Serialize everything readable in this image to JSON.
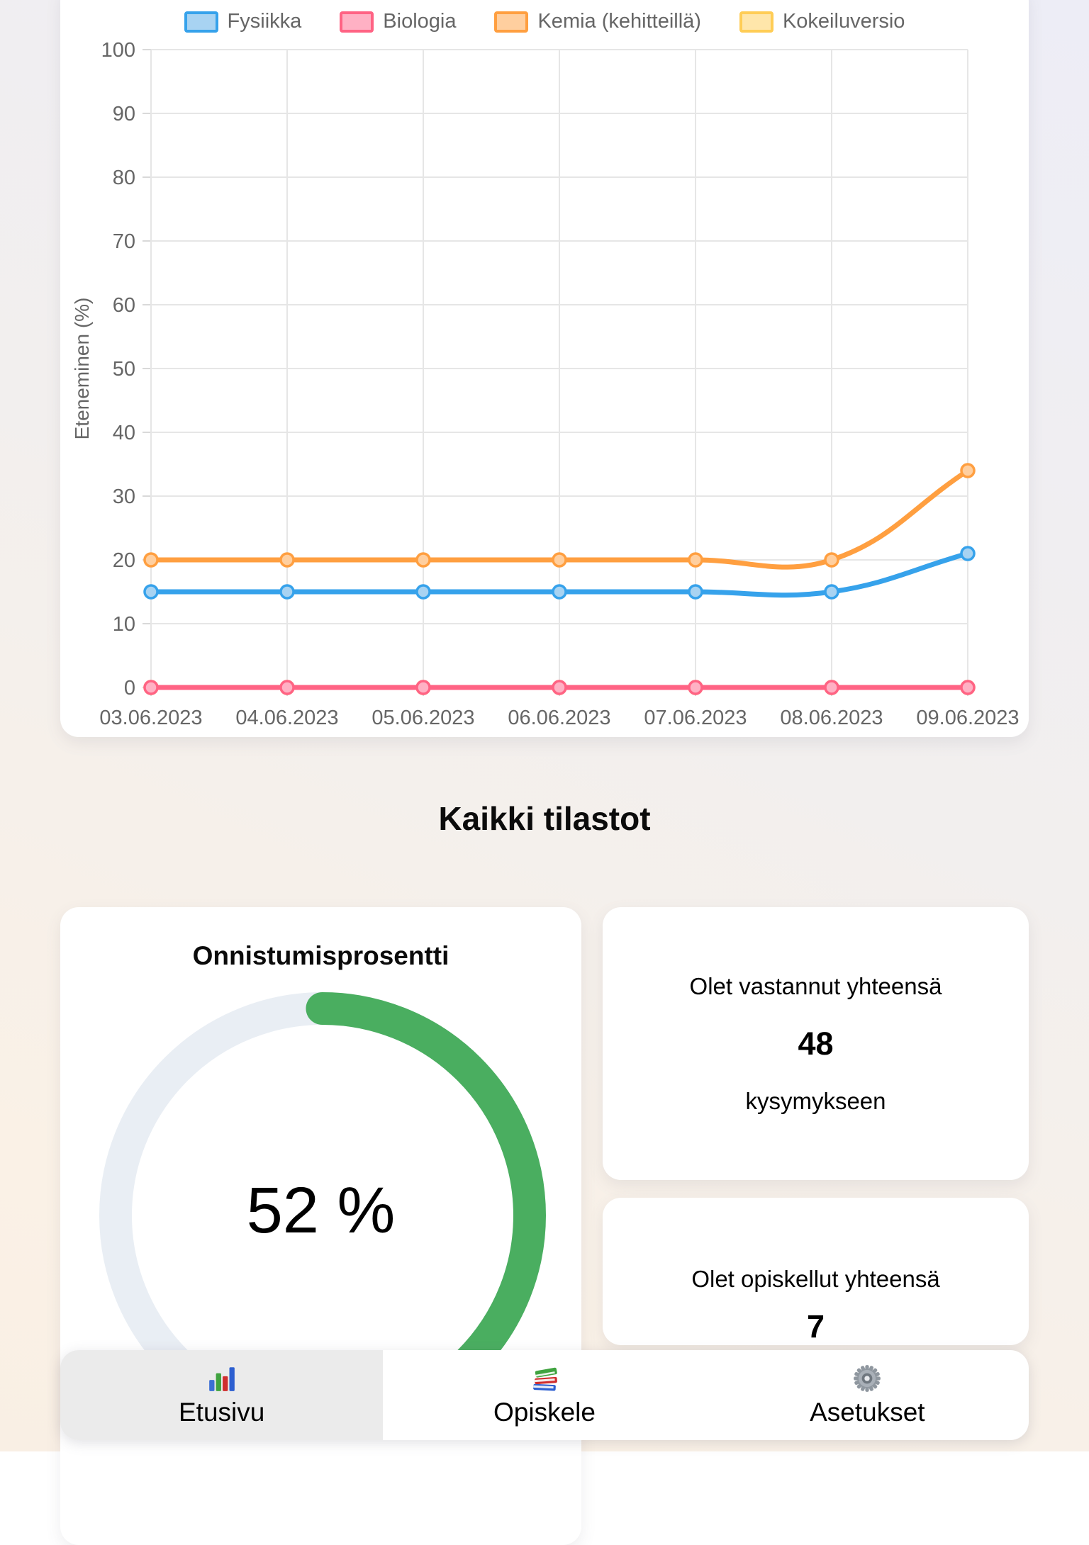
{
  "chart_data": {
    "type": "line",
    "ylabel": "Eteneminen (%)",
    "ylim": [
      0,
      100
    ],
    "y_ticks": [
      0,
      10,
      20,
      30,
      40,
      50,
      60,
      70,
      80,
      90,
      100
    ],
    "grid": true,
    "legend_position": "top",
    "categories": [
      "03.06.2023",
      "04.06.2023",
      "05.06.2023",
      "06.06.2023",
      "07.06.2023",
      "08.06.2023",
      "09.06.2023"
    ],
    "series": [
      {
        "name": "Fysiikka",
        "color": "#36A2EB",
        "fill": "#A8D3F2",
        "values": [
          15,
          15,
          15,
          15,
          15,
          15,
          21
        ]
      },
      {
        "name": "Biologia",
        "color": "#FF6384",
        "fill": "#FFB1C4",
        "values": [
          0,
          0,
          0,
          0,
          0,
          0,
          0
        ]
      },
      {
        "name": "Kemia (kehitteillä)",
        "color": "#FF9F40",
        "fill": "#FFCf9F",
        "values": [
          20,
          20,
          20,
          20,
          20,
          20,
          34
        ]
      },
      {
        "name": "Kokeiluversio",
        "color": "#FFCD56",
        "fill": "#FFE6AA",
        "values": [
          0,
          0,
          0,
          0,
          0,
          0,
          0
        ]
      }
    ]
  },
  "stats": {
    "heading": "Kaikki tilastot",
    "success_card": {
      "title": "Onnistumisprosentti",
      "value": "52 %",
      "percent": 52,
      "arc_color": "#4aae60",
      "track_color": "#e9eef4"
    },
    "answered_card": {
      "line1": "Olet vastannut yhteensä",
      "value": "48",
      "line2": "kysymykseen"
    },
    "studied_card": {
      "line1": "Olet opiskellut yhteensä",
      "value": "7"
    }
  },
  "nav": {
    "items": [
      {
        "label": "Etusivu",
        "icon": "bar-chart-icon",
        "active": true
      },
      {
        "label": "Opiskele",
        "icon": "books-icon",
        "active": false
      },
      {
        "label": "Asetukset",
        "icon": "gear-icon",
        "active": false
      }
    ]
  }
}
